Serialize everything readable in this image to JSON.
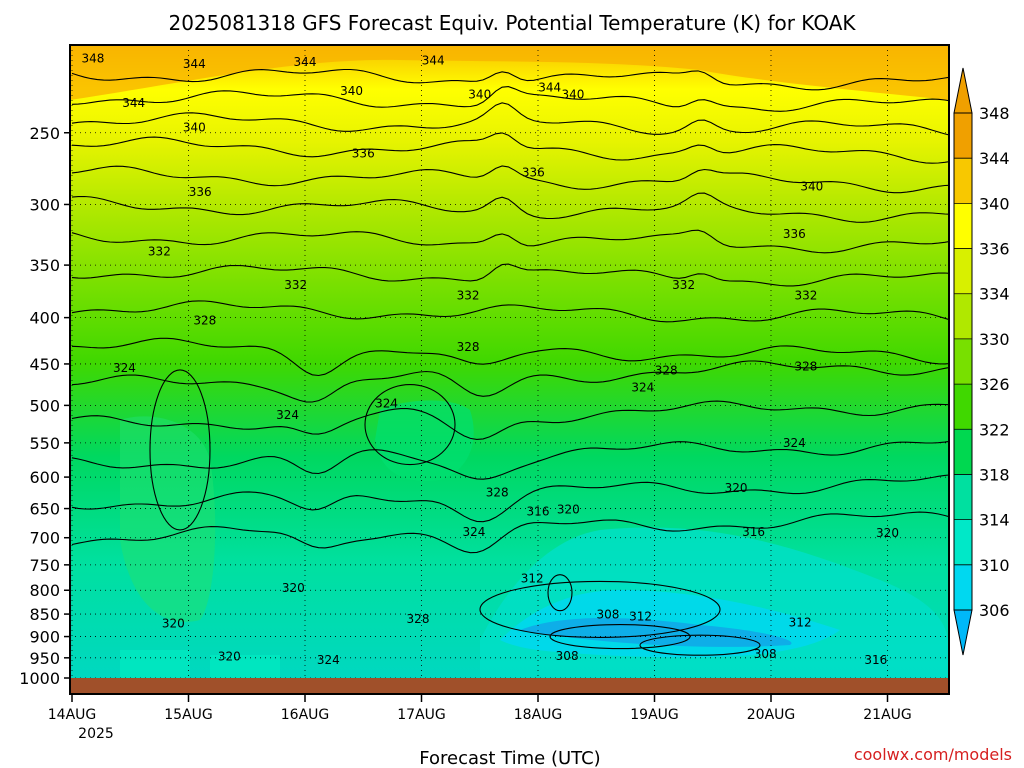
{
  "chart_data": {
    "type": "heatmap",
    "title": "2025081318 GFS Forecast Equiv. Potential Temperature (K) for KOAK",
    "xlabel": "Forecast Time (UTC)",
    "ylabel": "",
    "credit": "coolwx.com/models",
    "y_axis": {
      "ticks": [
        250,
        300,
        350,
        400,
        450,
        500,
        550,
        600,
        650,
        700,
        750,
        800,
        850,
        900,
        950,
        1000
      ],
      "labels": [
        "250",
        "300",
        "350",
        "400",
        "450",
        "500",
        "550",
        "600",
        "650",
        "700",
        "750",
        "800",
        "850",
        "900",
        "950",
        "1000"
      ],
      "scale": "log-pressure"
    },
    "x_axis": {
      "ticks": [
        "2025-08-14 00Z",
        "2025-08-15 00Z",
        "2025-08-16 00Z",
        "2025-08-17 00Z",
        "2025-08-18 00Z",
        "2025-08-19 00Z",
        "2025-08-20 00Z",
        "2025-08-21 00Z"
      ],
      "labels": [
        "14AUG",
        "15AUG",
        "16AUG",
        "17AUG",
        "18AUG",
        "19AUG",
        "20AUG",
        "21AUG"
      ],
      "first_label_year": "2025"
    },
    "colorbar": {
      "levels": [
        348,
        344,
        340,
        336,
        334,
        330,
        326,
        322,
        318,
        314,
        310,
        306
      ],
      "labels": [
        "348",
        "344",
        "340",
        "336",
        "334",
        "330",
        "326",
        "322",
        "318",
        "314",
        "310",
        "306"
      ],
      "colors": [
        "#f0a000",
        "#f8c800",
        "#ffff00",
        "#d8f000",
        "#b0e800",
        "#78e000",
        "#40d800",
        "#00d850",
        "#00e0a0",
        "#00e8c8",
        "#00d8f0",
        "#00b8f8"
      ]
    },
    "contour_labels": [
      {
        "text": "348",
        "t": 0.18,
        "p": 208
      },
      {
        "text": "344",
        "t": 0.53,
        "p": 233
      },
      {
        "text": "344",
        "t": 1.05,
        "p": 211
      },
      {
        "text": "344",
        "t": 2.0,
        "p": 210
      },
      {
        "text": "344",
        "t": 3.1,
        "p": 209
      },
      {
        "text": "344",
        "t": 4.1,
        "p": 224
      },
      {
        "text": "340",
        "t": 1.05,
        "p": 248
      },
      {
        "text": "340",
        "t": 2.4,
        "p": 226
      },
      {
        "text": "340",
        "t": 3.5,
        "p": 228
      },
      {
        "text": "340",
        "t": 4.3,
        "p": 228
      },
      {
        "text": "340",
        "t": 6.35,
        "p": 288
      },
      {
        "text": "336",
        "t": 1.1,
        "p": 292
      },
      {
        "text": "336",
        "t": 2.5,
        "p": 265
      },
      {
        "text": "336",
        "t": 3.96,
        "p": 278
      },
      {
        "text": "336",
        "t": 6.2,
        "p": 325
      },
      {
        "text": "332",
        "t": 0.75,
        "p": 340
      },
      {
        "text": "332",
        "t": 1.92,
        "p": 370
      },
      {
        "text": "332",
        "t": 3.4,
        "p": 380
      },
      {
        "text": "332",
        "t": 5.25,
        "p": 370
      },
      {
        "text": "332",
        "t": 6.3,
        "p": 380
      },
      {
        "text": "328",
        "t": 1.14,
        "p": 405
      },
      {
        "text": "328",
        "t": 3.4,
        "p": 433
      },
      {
        "text": "328",
        "t": 5.1,
        "p": 460
      },
      {
        "text": "328",
        "t": 6.3,
        "p": 455
      },
      {
        "text": "324",
        "t": 0.45,
        "p": 457
      },
      {
        "text": "324",
        "t": 1.85,
        "p": 515
      },
      {
        "text": "324",
        "t": 2.7,
        "p": 500
      },
      {
        "text": "324",
        "t": 4.9,
        "p": 480
      },
      {
        "text": "324",
        "t": 6.2,
        "p": 553
      },
      {
        "text": "328",
        "t": 3.65,
        "p": 627
      },
      {
        "text": "324",
        "t": 3.45,
        "p": 693
      },
      {
        "text": "320",
        "t": 4.26,
        "p": 655
      },
      {
        "text": "316",
        "t": 4.0,
        "p": 658
      },
      {
        "text": "320",
        "t": 5.7,
        "p": 620
      },
      {
        "text": "316",
        "t": 5.85,
        "p": 693
      },
      {
        "text": "320",
        "t": 7.0,
        "p": 695
      },
      {
        "text": "320",
        "t": 1.9,
        "p": 800
      },
      {
        "text": "320",
        "t": 0.87,
        "p": 875
      },
      {
        "text": "328",
        "t": 2.97,
        "p": 865
      },
      {
        "text": "312",
        "t": 3.95,
        "p": 780
      },
      {
        "text": "308",
        "t": 4.6,
        "p": 855
      },
      {
        "text": "312",
        "t": 4.88,
        "p": 860
      },
      {
        "text": "312",
        "t": 6.25,
        "p": 873
      },
      {
        "text": "308",
        "t": 4.25,
        "p": 950
      },
      {
        "text": "308",
        "t": 5.95,
        "p": 945
      },
      {
        "text": "320",
        "t": 1.35,
        "p": 952
      },
      {
        "text": "324",
        "t": 2.2,
        "p": 960
      },
      {
        "text": "316",
        "t": 6.9,
        "p": 960
      }
    ]
  }
}
